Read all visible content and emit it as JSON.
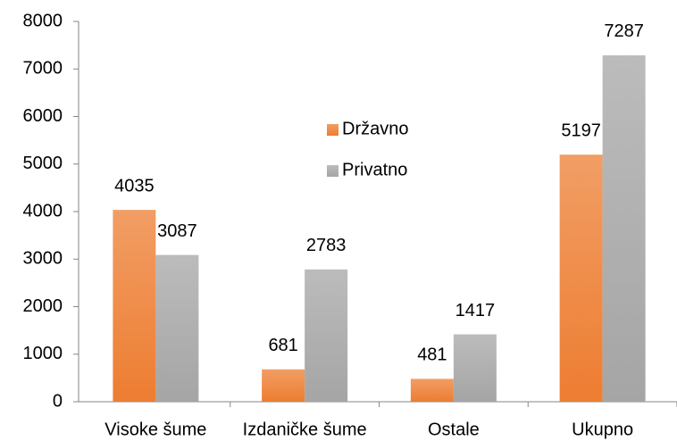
{
  "chart_data": {
    "type": "bar",
    "categories": [
      "Visoke šume",
      "Izdaničke šume",
      "Ostale",
      "Ukupno"
    ],
    "series": [
      {
        "name": "Državno",
        "color": "#ed7d31",
        "values": [
          4035,
          681,
          481,
          5197
        ]
      },
      {
        "name": "Privatno",
        "color": "#a5a5a5",
        "values": [
          3087,
          2783,
          1417,
          7287
        ]
      }
    ],
    "ylim": [
      0,
      8000
    ],
    "yticks": [
      0,
      1000,
      2000,
      3000,
      4000,
      5000,
      6000,
      7000,
      8000
    ],
    "grid": false,
    "legend_position": "center",
    "data_labels": true
  }
}
